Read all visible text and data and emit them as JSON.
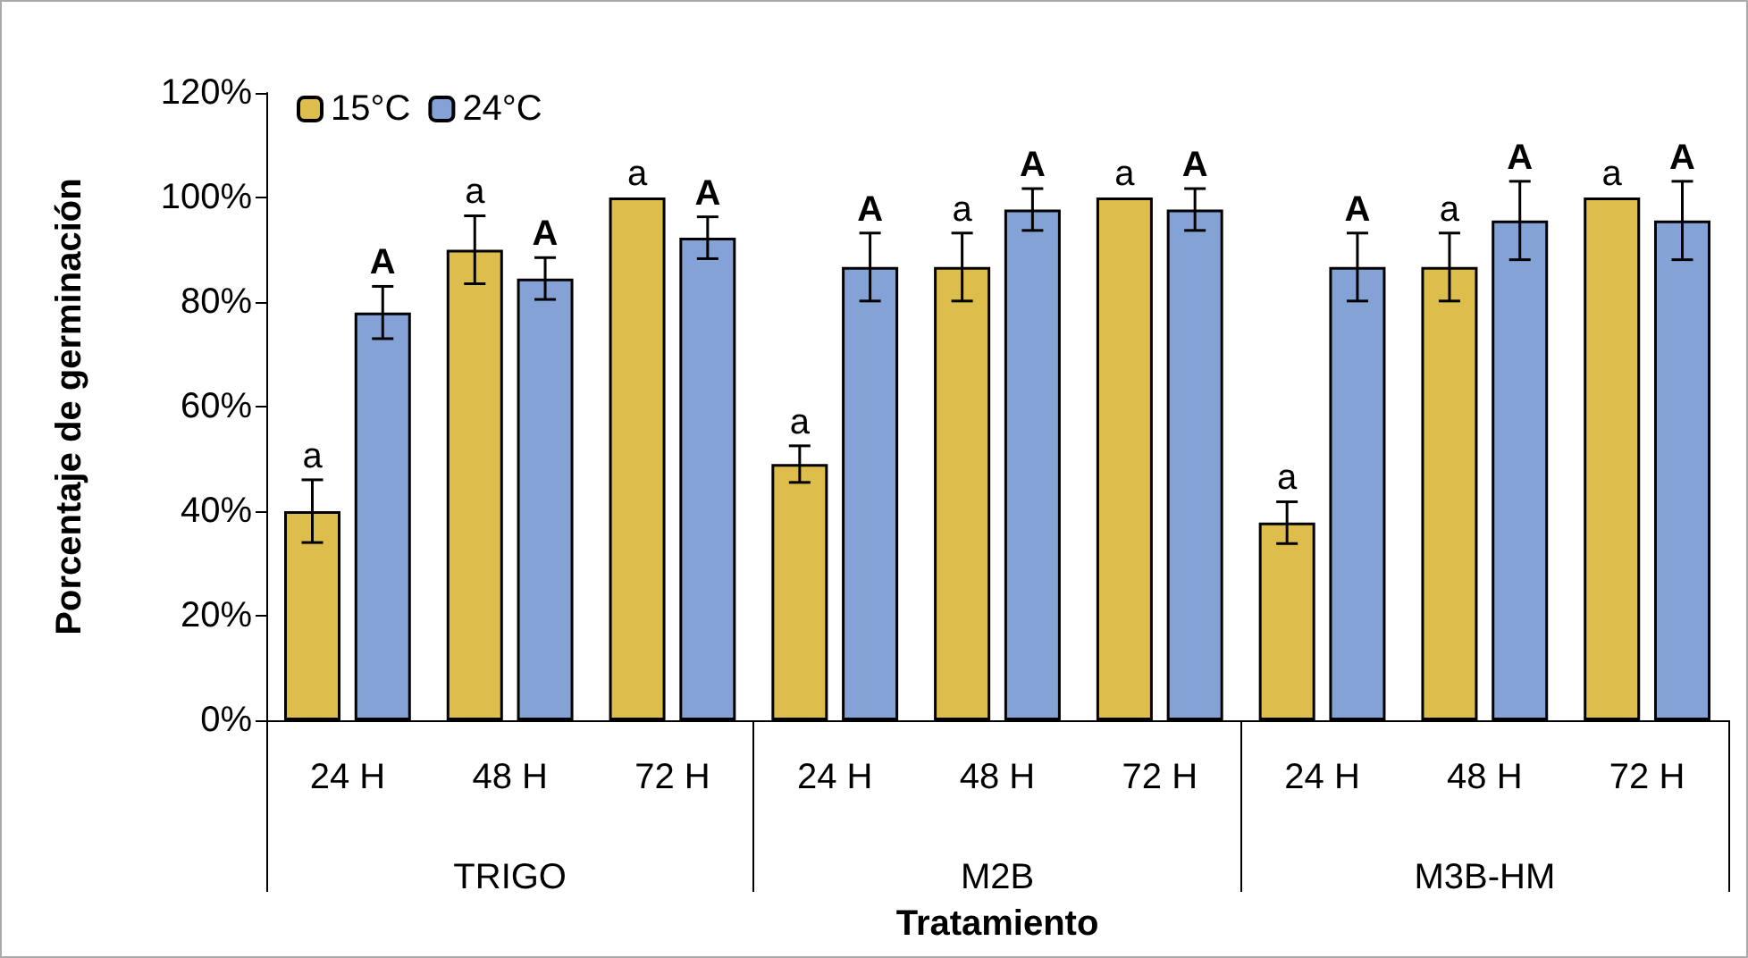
{
  "chart_data": {
    "type": "bar",
    "xlabel": "Tratamiento",
    "ylabel": "Porcentaje de germinación",
    "categories": [
      "24 H",
      "48 H",
      "72 H",
      "24 H",
      "48 H",
      "72 H",
      "24 H",
      "48 H",
      "72 H"
    ],
    "annotations": [
      "TRIGO",
      "M2B",
      "M3B-HM"
    ],
    "series": [
      {
        "name": "15°C",
        "color": "#ddbd4b",
        "values": [
          40,
          90,
          100,
          49,
          86.7,
          100,
          37.8,
          86.7,
          100
        ],
        "errors": [
          6,
          6.5,
          null,
          3.5,
          6.5,
          null,
          4,
          6.5,
          null
        ],
        "value_labels": [
          "a",
          "a",
          "a",
          "a",
          "a",
          "a",
          "a",
          "a",
          "a"
        ]
      },
      {
        "name": "24°C",
        "color": "#84a2d6",
        "values": [
          78,
          84.5,
          92.3,
          86.7,
          97.7,
          97.7,
          86.7,
          95.6,
          95.6
        ],
        "errors": [
          5,
          4,
          4,
          6.5,
          4,
          4,
          6.5,
          7.5,
          7.5
        ],
        "value_labels": [
          "A",
          "A",
          "A",
          "A",
          "A",
          "A",
          "A",
          "A",
          "A"
        ]
      }
    ],
    "ylim": [
      0,
      120
    ],
    "yticks": [
      {
        "value": 0,
        "label": "0%"
      },
      {
        "value": 20,
        "label": "20%"
      },
      {
        "value": 40,
        "label": "40%"
      },
      {
        "value": 60,
        "label": "60%"
      },
      {
        "value": 80,
        "label": "80%"
      },
      {
        "value": 100,
        "label": "100%"
      },
      {
        "value": 120,
        "label": "120%"
      }
    ],
    "grid": false,
    "legend": "top left"
  }
}
